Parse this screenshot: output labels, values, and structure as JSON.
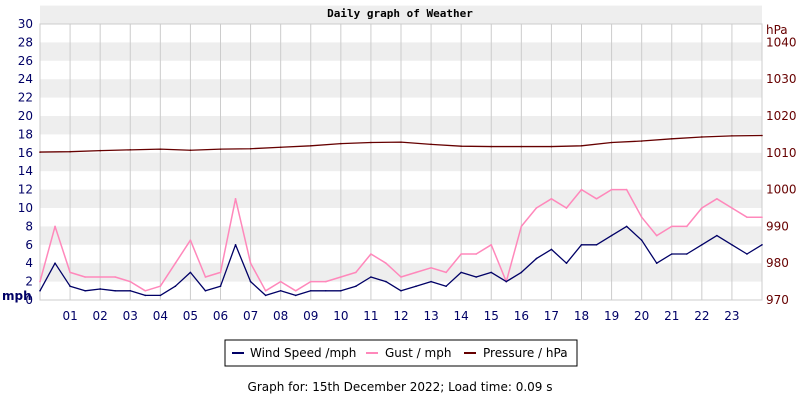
{
  "chart_data": {
    "type": "line",
    "title": "Daily graph of Weather",
    "ylabel_left": "mph",
    "ylabel_right": "hPa",
    "ylim_left": [
      0,
      30
    ],
    "ylim_right": [
      970,
      1045
    ],
    "xlim": [
      0,
      24
    ],
    "grid": true,
    "legend_placement": "bottom",
    "left_ticks": [
      "0",
      "2",
      "4",
      "6",
      "8",
      "10",
      "12",
      "14",
      "16",
      "18",
      "20",
      "22",
      "24",
      "26",
      "28",
      "30"
    ],
    "right_ticks": [
      "970",
      "980",
      "990",
      "1000",
      "1010",
      "1020",
      "1030",
      "1040"
    ],
    "x_ticks": [
      "01",
      "02",
      "03",
      "04",
      "05",
      "06",
      "07",
      "08",
      "09",
      "10",
      "11",
      "12",
      "13",
      "14",
      "15",
      "16",
      "17",
      "18",
      "19",
      "20",
      "21",
      "22",
      "23"
    ],
    "series": [
      {
        "name": "Wind Speed /mph",
        "color": "#000066",
        "axis": "left",
        "x": [
          0,
          0.5,
          1,
          1.5,
          2,
          2.5,
          3,
          3.5,
          4,
          4.5,
          5,
          5.5,
          6,
          6.5,
          7,
          7.5,
          8,
          8.5,
          9,
          9.5,
          10,
          10.5,
          11,
          11.5,
          12,
          12.5,
          13,
          13.5,
          14,
          14.5,
          15,
          15.5,
          16,
          16.5,
          17,
          17.5,
          18,
          18.5,
          19,
          19.5,
          20,
          20.5,
          21,
          21.5,
          22,
          22.5,
          23,
          23.5,
          24
        ],
        "values": [
          1.0,
          4.0,
          1.5,
          1.0,
          1.2,
          1.0,
          1.0,
          0.5,
          0.5,
          1.5,
          3.0,
          1.0,
          1.5,
          6.0,
          2.0,
          0.5,
          1.0,
          0.5,
          1.0,
          1.0,
          1.0,
          1.5,
          2.5,
          2.0,
          1.0,
          1.5,
          2.0,
          1.5,
          3.0,
          2.5,
          3.0,
          2.0,
          3.0,
          4.5,
          5.5,
          4.0,
          6.0,
          6.0,
          7.0,
          8.0,
          6.5,
          4.0,
          5.0,
          5.0,
          6.0,
          7.0,
          6.0,
          5.0,
          6.0
        ]
      },
      {
        "name": "Gust / mph",
        "color": "#ff88bb",
        "axis": "left",
        "x": [
          0,
          0.5,
          1,
          1.5,
          2,
          2.5,
          3,
          3.5,
          4,
          4.5,
          5,
          5.5,
          6,
          6.5,
          7,
          7.5,
          8,
          8.5,
          9,
          9.5,
          10,
          10.5,
          11,
          11.5,
          12,
          12.5,
          13,
          13.5,
          14,
          14.5,
          15,
          15.5,
          16,
          16.5,
          17,
          17.5,
          18,
          18.5,
          19,
          19.5,
          20,
          20.5,
          21,
          21.5,
          22,
          22.5,
          23,
          23.5,
          24
        ],
        "values": [
          2.0,
          8.0,
          3.0,
          2.5,
          2.5,
          2.5,
          2.0,
          1.0,
          1.5,
          4.0,
          6.5,
          2.5,
          3.0,
          11.0,
          4.0,
          1.0,
          2.0,
          1.0,
          2.0,
          2.0,
          2.5,
          3.0,
          5.0,
          4.0,
          2.5,
          3.0,
          3.5,
          3.0,
          5.0,
          5.0,
          6.0,
          2.0,
          8.0,
          10.0,
          11.0,
          10.0,
          12.0,
          11.0,
          12.0,
          12.0,
          9.0,
          7.0,
          8.0,
          8.0,
          10.0,
          11.0,
          10.0,
          9.0,
          9.0
        ]
      },
      {
        "name": "Pressure / hPa",
        "color": "#660000",
        "axis": "right",
        "x": [
          0,
          1,
          2,
          3,
          4,
          5,
          6,
          7,
          8,
          9,
          10,
          11,
          12,
          13,
          14,
          15,
          16,
          17,
          18,
          19,
          20,
          21,
          22,
          23,
          24
        ],
        "values": [
          1010.2,
          1010.3,
          1010.6,
          1010.8,
          1011.0,
          1010.7,
          1011.0,
          1011.1,
          1011.5,
          1011.9,
          1012.5,
          1012.8,
          1012.9,
          1012.3,
          1011.8,
          1011.7,
          1011.7,
          1011.7,
          1011.9,
          1012.8,
          1013.2,
          1013.8,
          1014.3,
          1014.6,
          1014.7
        ]
      }
    ]
  },
  "footer": "Graph for: 15th December 2022; Load time: 0.09 s",
  "legend_items": [
    "Wind Speed /mph",
    "Gust / mph",
    "Pressure / hPa"
  ]
}
